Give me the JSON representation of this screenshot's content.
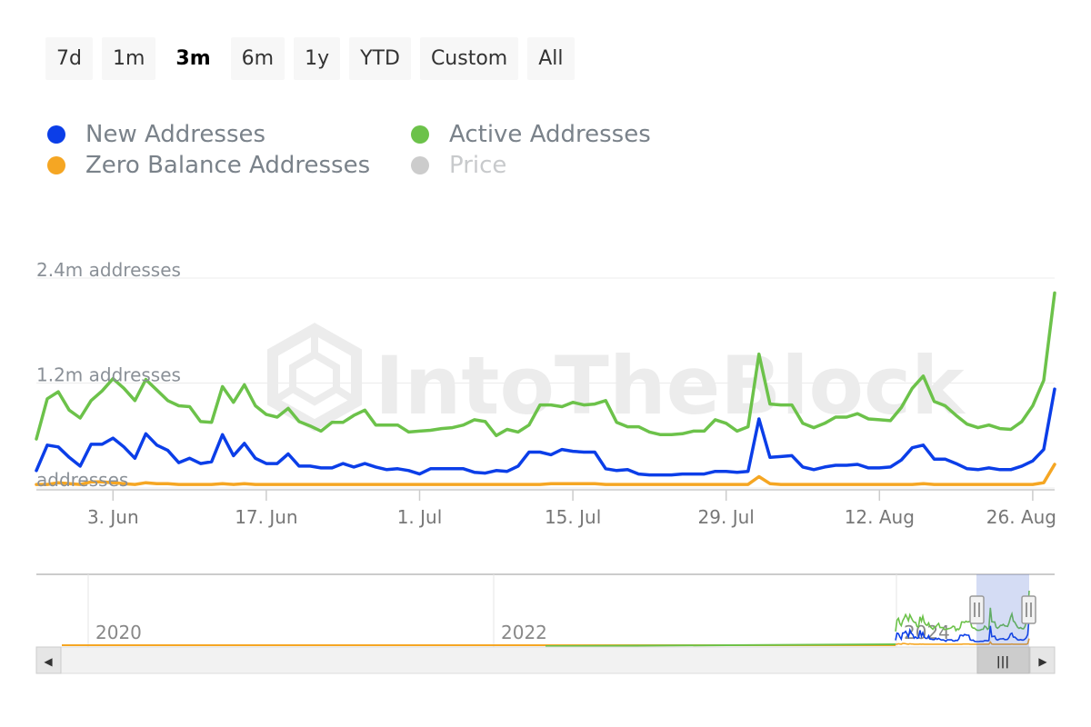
{
  "range_buttons": [
    {
      "label": "7d",
      "active": false
    },
    {
      "label": "1m",
      "active": false
    },
    {
      "label": "3m",
      "active": true
    },
    {
      "label": "6m",
      "active": false
    },
    {
      "label": "1y",
      "active": false
    },
    {
      "label": "YTD",
      "active": false
    },
    {
      "label": "Custom",
      "active": false
    },
    {
      "label": "All",
      "active": false
    }
  ],
  "legend": [
    {
      "label": "New Addresses",
      "color": "#0b3ee8",
      "visible": true
    },
    {
      "label": "Active Addresses",
      "color": "#6cc24a",
      "visible": true
    },
    {
      "label": "Zero Balance Addresses",
      "color": "#f5a623",
      "visible": true
    },
    {
      "label": "Price",
      "color": "#cccccc",
      "visible": false
    }
  ],
  "watermark": "IntoTheBlock",
  "chart_data": {
    "type": "line",
    "x_start": "2024-05-27",
    "x_end": "2024-08-28",
    "x_tick_labels": [
      "3. Jun",
      "17. Jun",
      "1. Jul",
      "15. Jul",
      "29. Jul",
      "12. Aug",
      "26. Aug"
    ],
    "x_tick_dates": [
      "2024-06-03",
      "2024-06-17",
      "2024-07-01",
      "2024-07-15",
      "2024-07-29",
      "2024-08-12",
      "2024-08-26"
    ],
    "y_tick_labels": [
      "addresses",
      "1.2m addresses",
      "2.4m addresses"
    ],
    "y_tick_values": [
      0,
      1200000,
      2400000
    ],
    "ylim": [
      0,
      2400000
    ],
    "grid": true,
    "legend_position": "top",
    "series": [
      {
        "name": "Active Addresses",
        "color": "#6cc24a",
        "values": [
          560000,
          1020000,
          1100000,
          890000,
          800000,
          1000000,
          1110000,
          1250000,
          1140000,
          1000000,
          1240000,
          1120000,
          1000000,
          940000,
          930000,
          760000,
          750000,
          1160000,
          980000,
          1180000,
          940000,
          840000,
          810000,
          910000,
          760000,
          710000,
          650000,
          750000,
          750000,
          830000,
          890000,
          720000,
          720000,
          720000,
          640000,
          650000,
          660000,
          680000,
          690000,
          720000,
          780000,
          760000,
          600000,
          670000,
          640000,
          720000,
          950000,
          950000,
          930000,
          980000,
          950000,
          960000,
          1000000,
          750000,
          700000,
          700000,
          640000,
          610000,
          610000,
          620000,
          650000,
          650000,
          780000,
          740000,
          650000,
          700000,
          1530000,
          960000,
          950000,
          950000,
          740000,
          690000,
          740000,
          810000,
          810000,
          850000,
          790000,
          780000,
          770000,
          920000,
          1140000,
          1280000,
          990000,
          940000,
          830000,
          730000,
          690000,
          720000,
          680000,
          670000,
          760000,
          940000,
          1230000,
          2230000
        ]
      },
      {
        "name": "New Addresses",
        "color": "#0b3ee8",
        "values": [
          200000,
          490000,
          470000,
          350000,
          250000,
          500000,
          500000,
          570000,
          470000,
          340000,
          620000,
          490000,
          430000,
          290000,
          340000,
          280000,
          300000,
          610000,
          370000,
          510000,
          340000,
          280000,
          280000,
          390000,
          250000,
          250000,
          230000,
          230000,
          280000,
          240000,
          280000,
          240000,
          210000,
          220000,
          200000,
          160000,
          220000,
          220000,
          220000,
          220000,
          180000,
          170000,
          200000,
          190000,
          250000,
          410000,
          410000,
          380000,
          440000,
          420000,
          410000,
          410000,
          220000,
          200000,
          210000,
          160000,
          150000,
          150000,
          150000,
          160000,
          160000,
          160000,
          190000,
          190000,
          180000,
          190000,
          790000,
          350000,
          360000,
          370000,
          240000,
          210000,
          240000,
          260000,
          260000,
          270000,
          230000,
          230000,
          240000,
          320000,
          460000,
          490000,
          330000,
          330000,
          280000,
          220000,
          210000,
          230000,
          210000,
          210000,
          250000,
          310000,
          440000,
          1130000
        ]
      },
      {
        "name": "Zero Balance Addresses",
        "color": "#f5a623",
        "values": [
          40000,
          40000,
          60000,
          50000,
          40000,
          70000,
          70000,
          60000,
          50000,
          40000,
          60000,
          50000,
          50000,
          40000,
          40000,
          40000,
          40000,
          50000,
          40000,
          50000,
          40000,
          40000,
          40000,
          40000,
          40000,
          40000,
          40000,
          40000,
          40000,
          40000,
          40000,
          40000,
          40000,
          40000,
          40000,
          40000,
          40000,
          40000,
          40000,
          40000,
          40000,
          40000,
          40000,
          40000,
          40000,
          40000,
          40000,
          50000,
          50000,
          50000,
          50000,
          50000,
          40000,
          40000,
          40000,
          40000,
          40000,
          40000,
          40000,
          40000,
          40000,
          40000,
          40000,
          40000,
          40000,
          40000,
          130000,
          50000,
          40000,
          40000,
          40000,
          40000,
          40000,
          40000,
          40000,
          40000,
          40000,
          40000,
          40000,
          40000,
          40000,
          50000,
          40000,
          40000,
          40000,
          40000,
          40000,
          40000,
          40000,
          40000,
          40000,
          40000,
          60000,
          270000
        ]
      }
    ]
  },
  "navigator": {
    "year_labels": [
      "2020",
      "2022",
      "2024"
    ],
    "scroll_grip": "|||",
    "left_arrow": "◀",
    "right_arrow": "▶"
  }
}
